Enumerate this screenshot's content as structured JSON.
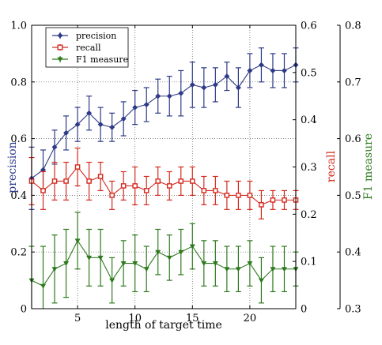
{
  "chart_data": {
    "type": "line",
    "xlabel": "length of target time",
    "x": [
      1,
      2,
      3,
      4,
      5,
      6,
      7,
      8,
      9,
      10,
      11,
      12,
      13,
      14,
      15,
      16,
      17,
      18,
      19,
      20,
      21,
      22,
      23,
      24
    ],
    "xlim": [
      1,
      24
    ],
    "xticks": [
      5,
      10,
      15,
      20
    ],
    "grid": true,
    "legend_position": "top-left",
    "axes": [
      {
        "id": "precision",
        "label": "precision",
        "side": "left",
        "ylim": [
          0,
          1.0
        ],
        "ticks": [
          "0",
          "0.2",
          "0.4",
          "0.6",
          "0.8",
          "1.0"
        ],
        "color": "#2e3a87"
      },
      {
        "id": "recall",
        "label": "recall",
        "side": "right",
        "ylim": [
          0,
          0.6
        ],
        "ticks": [
          "0",
          "0.1",
          "0.2",
          "0.3",
          "0.4",
          "0.5",
          "0.6"
        ],
        "color": "#d42a1e"
      },
      {
        "id": "f1",
        "label": "F1 measure",
        "side": "far-right",
        "ylim": [
          0.3,
          0.8
        ],
        "ticks": [
          "0.3",
          "0.4",
          "0.5",
          "0.6",
          "0.7",
          "0.8"
        ],
        "color": "#2e7a1e"
      }
    ],
    "series": [
      {
        "name": "precision",
        "axis": "precision",
        "marker": "diamond",
        "color": "#2e3a87",
        "values": [
          0.46,
          0.49,
          0.57,
          0.62,
          0.65,
          0.69,
          0.65,
          0.64,
          0.67,
          0.71,
          0.72,
          0.75,
          0.75,
          0.76,
          0.79,
          0.78,
          0.79,
          0.82,
          0.78,
          0.84,
          0.86,
          0.84,
          0.84,
          0.86
        ],
        "err": [
          0.11,
          0.07,
          0.06,
          0.06,
          0.06,
          0.06,
          0.06,
          0.05,
          0.06,
          0.06,
          0.06,
          0.06,
          0.07,
          0.08,
          0.08,
          0.07,
          0.06,
          0.05,
          0.07,
          0.06,
          0.06,
          0.06,
          0.06,
          0.06
        ]
      },
      {
        "name": "recall",
        "axis": "recall",
        "marker": "square",
        "color": "#d42a1e",
        "values": [
          0.27,
          0.25,
          0.27,
          0.27,
          0.3,
          0.27,
          0.28,
          0.24,
          0.26,
          0.26,
          0.25,
          0.27,
          0.26,
          0.27,
          0.27,
          0.25,
          0.25,
          0.24,
          0.24,
          0.24,
          0.22,
          0.23,
          0.23,
          0.23
        ],
        "err": [
          0.05,
          0.04,
          0.04,
          0.04,
          0.04,
          0.04,
          0.03,
          0.03,
          0.03,
          0.04,
          0.03,
          0.03,
          0.03,
          0.03,
          0.03,
          0.03,
          0.03,
          0.03,
          0.03,
          0.03,
          0.03,
          0.02,
          0.02,
          0.02
        ]
      },
      {
        "name": "F1 measure",
        "axis": "f1",
        "marker": "triangle-down",
        "color": "#2e7a1e",
        "values": [
          0.35,
          0.34,
          0.37,
          0.38,
          0.42,
          0.39,
          0.39,
          0.35,
          0.38,
          0.38,
          0.37,
          0.4,
          0.39,
          0.4,
          0.41,
          0.38,
          0.38,
          0.37,
          0.37,
          0.38,
          0.35,
          0.37,
          0.37,
          0.37
        ],
        "err": [
          0.06,
          0.07,
          0.06,
          0.06,
          0.05,
          0.05,
          0.05,
          0.04,
          0.04,
          0.05,
          0.04,
          0.04,
          0.04,
          0.04,
          0.04,
          0.04,
          0.04,
          0.04,
          0.04,
          0.04,
          0.04,
          0.04,
          0.04,
          0.03
        ]
      }
    ]
  }
}
